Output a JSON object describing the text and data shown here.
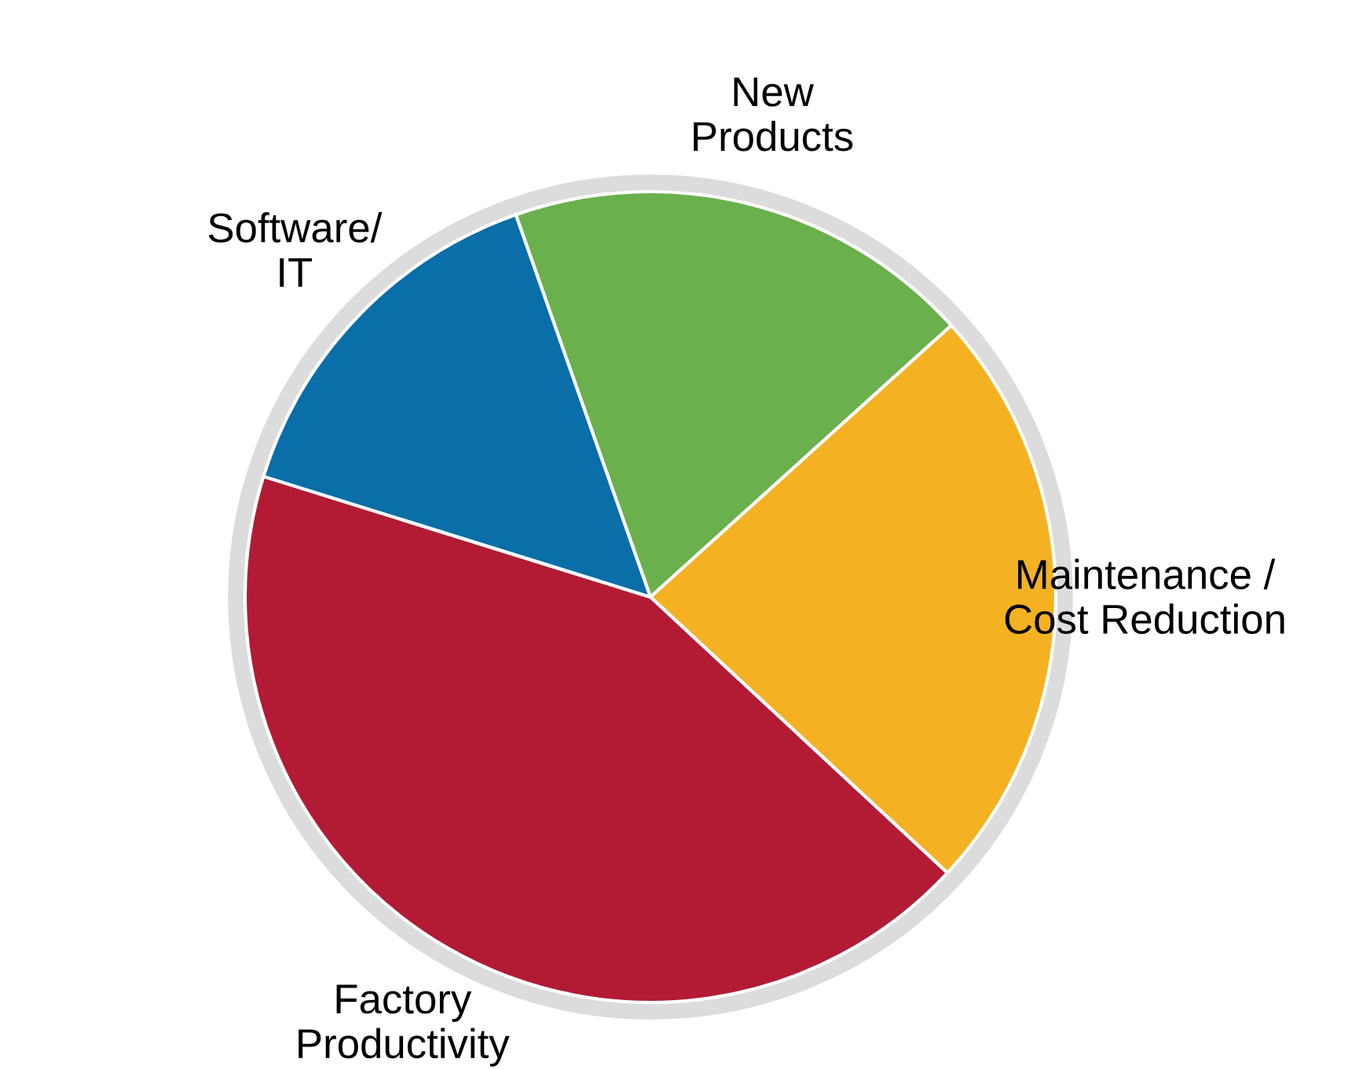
{
  "chart_data": {
    "type": "pie",
    "categories": [
      "New\nProducts",
      "Maintenance /\nCost Reduction",
      "Factory\nProductivity",
      "Software/\nIT"
    ],
    "values": [
      18.7,
      23.6,
      42.9,
      14.8
    ],
    "colors": [
      "#6ab04c",
      "#f4b223",
      "#b31b34",
      "#0a6ea8"
    ],
    "legend": false
  }
}
